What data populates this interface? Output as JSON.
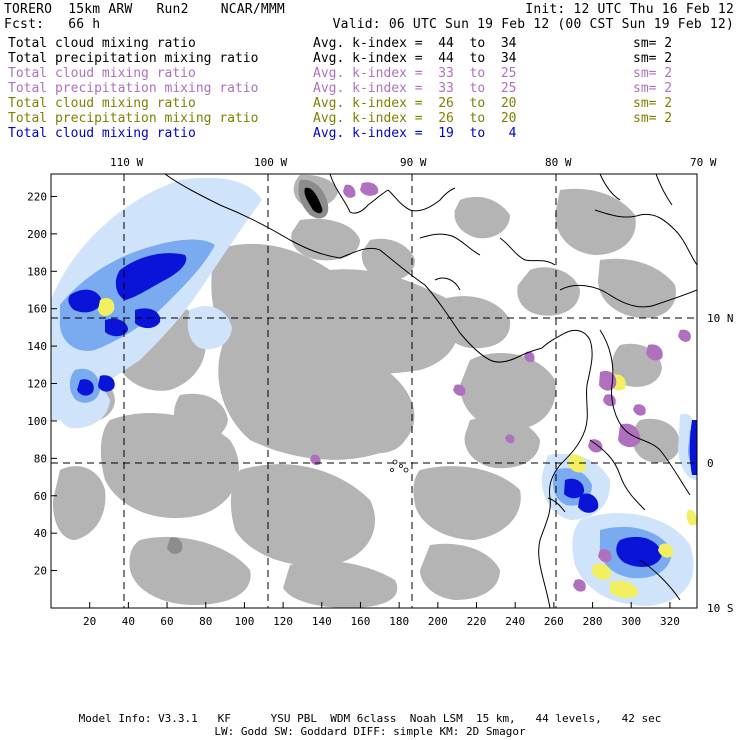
{
  "header": {
    "model": "TORERO  15km ARW   Run2    NCAR/MMM",
    "init": "Init: 12 UTC Thu 16 Feb 12",
    "fcst": "Fcst:   66 h",
    "valid": "Valid: 06 UTC Sun 19 Feb 12 (00 CST Sun 19 Feb 12)"
  },
  "fields": [
    {
      "label": "Total cloud mixing ratio",
      "kindex": "Avg. k-index =  44  to  34",
      "sm": "sm= 2",
      "color": "#000000"
    },
    {
      "label": "Total precipitation mixing ratio",
      "kindex": "Avg. k-index =  44  to  34",
      "sm": "sm= 2",
      "color": "#000000"
    },
    {
      "label": "Total cloud mixing ratio",
      "kindex": "Avg. k-index =  33  to  25",
      "sm": "sm= 2",
      "color": "#b070c0"
    },
    {
      "label": "Total precipitation mixing ratio",
      "kindex": "Avg. k-index =  33  to  25",
      "sm": "sm= 2",
      "color": "#b070c0"
    },
    {
      "label": "Total cloud mixing ratio",
      "kindex": "Avg. k-index =  26  to  20",
      "sm": "sm= 2",
      "color": "#808000"
    },
    {
      "label": "Total precipitation mixing ratio",
      "kindex": "Avg. k-index =  26  to  20",
      "sm": "sm= 2",
      "color": "#808000"
    },
    {
      "label": "Total cloud mixing ratio",
      "kindex": "Avg. k-index =  19  to   4",
      "sm": "",
      "color": "#0000cc"
    }
  ],
  "map": {
    "longitude_labels": [
      "110 W",
      "100 W",
      "90 W",
      "80 W",
      "70 W"
    ],
    "latitude_labels": [
      "10 N",
      "0",
      "10 S"
    ],
    "x_ticks": [
      "20",
      "40",
      "60",
      "80",
      "100",
      "120",
      "140",
      "160",
      "180",
      "200",
      "220",
      "240",
      "260",
      "280",
      "300",
      "320"
    ],
    "y_ticks": [
      "220",
      "200",
      "180",
      "160",
      "140",
      "120",
      "100",
      "80",
      "60",
      "40",
      "20"
    ],
    "colors": {
      "low_cloud": "#b4b4b4",
      "mid_cloud": "#b070c0",
      "high_cloud_light": "#cfe4fa",
      "high_cloud_mid": "#7aaaf0",
      "high_cloud_dark": "#0a14d8",
      "yellow": "#f2f060"
    }
  },
  "footer": {
    "line1": "Model Info: V3.3.1   KF      YSU PBL  WDM 6class  Noah LSM  15 km,   44 levels,   42 sec",
    "line2": "LW: Godd SW: Goddard DIFF: simple KM: 2D Smagor"
  }
}
